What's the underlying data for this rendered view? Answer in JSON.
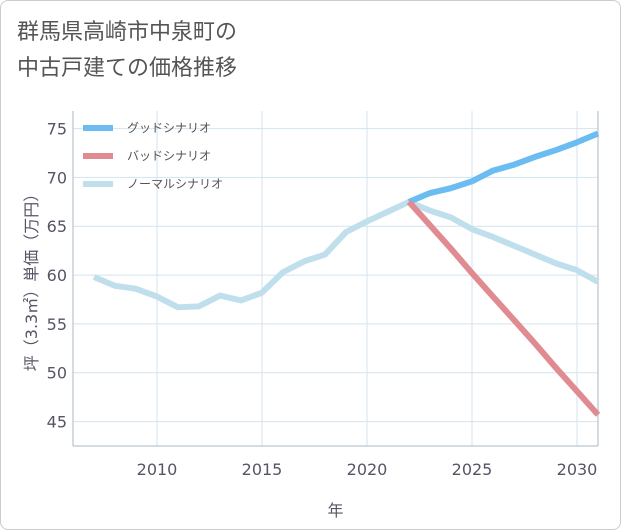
{
  "chart_data": {
    "type": "line",
    "title": "群馬県高崎市中泉町の\n中古戸建ての価格推移",
    "xlabel": "年",
    "ylabel": "坪（3.3㎡）単価（万円）",
    "xlim": [
      2006,
      2031
    ],
    "ylim": [
      42.5,
      76.8
    ],
    "xticks": [
      2010,
      2015,
      2020,
      2025,
      2030
    ],
    "yticks": [
      45,
      50,
      55,
      60,
      65,
      70,
      75
    ],
    "grid": true,
    "legend_position": "top-left",
    "series": [
      {
        "name": "グッドシナリオ",
        "color": "#6bbcf0",
        "x": [
          2022,
          2023,
          2024,
          2025,
          2026,
          2027,
          2028,
          2029,
          2030,
          2031
        ],
        "y": [
          67.5,
          68.4,
          68.9,
          69.6,
          70.7,
          71.3,
          72.1,
          72.8,
          73.6,
          74.5
        ]
      },
      {
        "name": "バッドシナリオ",
        "color": "#e08b92",
        "x": [
          2022,
          2023,
          2024,
          2025,
          2026,
          2027,
          2028,
          2029,
          2030,
          2031
        ],
        "y": [
          67.5,
          65.1,
          62.7,
          60.2,
          57.8,
          55.4,
          53.0,
          50.5,
          48.1,
          45.7
        ]
      },
      {
        "name": "ノーマルシナリオ",
        "color": "#c0dfec",
        "x": [
          2007,
          2008,
          2009,
          2010,
          2011,
          2012,
          2013,
          2014,
          2015,
          2016,
          2017,
          2018,
          2019,
          2020,
          2021,
          2022,
          2023,
          2024,
          2025,
          2026,
          2027,
          2028,
          2029,
          2030,
          2031
        ],
        "y": [
          59.8,
          58.9,
          58.6,
          57.8,
          56.7,
          56.8,
          57.9,
          57.4,
          58.2,
          60.3,
          61.4,
          62.1,
          64.4,
          65.5,
          66.5,
          67.5,
          66.6,
          65.9,
          64.7,
          63.9,
          63.0,
          62.1,
          61.2,
          60.5,
          59.3
        ]
      }
    ]
  }
}
